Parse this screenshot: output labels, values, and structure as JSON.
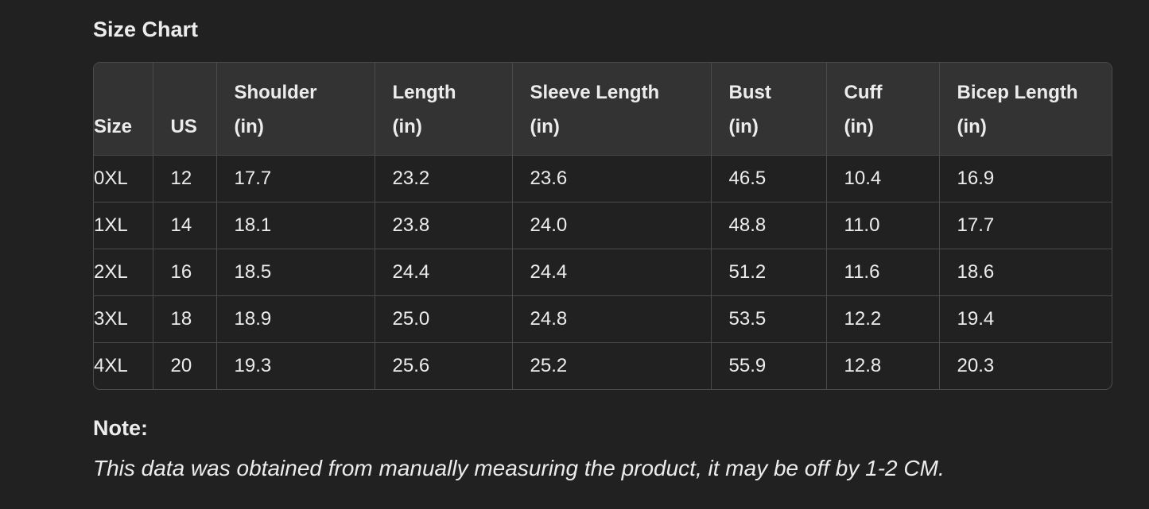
{
  "title": "Size Chart",
  "table": {
    "headers": [
      [
        "",
        "Size"
      ],
      [
        "",
        "US"
      ],
      [
        "Shoulder",
        "(in)"
      ],
      [
        "Length",
        "(in)"
      ],
      [
        "Sleeve Length",
        "(in)"
      ],
      [
        "Bust",
        "(in)"
      ],
      [
        "Cuff",
        "(in)"
      ],
      [
        "Bicep Length",
        "(in)"
      ]
    ],
    "rows": [
      [
        "0XL",
        "12",
        "17.7",
        "23.2",
        "23.6",
        "46.5",
        "10.4",
        "16.9"
      ],
      [
        "1XL",
        "14",
        "18.1",
        "23.8",
        "24.0",
        "48.8",
        "11.0",
        "17.7"
      ],
      [
        "2XL",
        "16",
        "18.5",
        "24.4",
        "24.4",
        "51.2",
        "11.6",
        "18.6"
      ],
      [
        "3XL",
        "18",
        "18.9",
        "25.0",
        "24.8",
        "53.5",
        "12.2",
        "19.4"
      ],
      [
        "4XL",
        "20",
        "19.3",
        "25.6",
        "25.2",
        "55.9",
        "12.8",
        "20.3"
      ]
    ]
  },
  "note": {
    "heading": "Note:",
    "text": "This data was obtained from manually measuring the product, it may be off by 1-2 CM."
  }
}
